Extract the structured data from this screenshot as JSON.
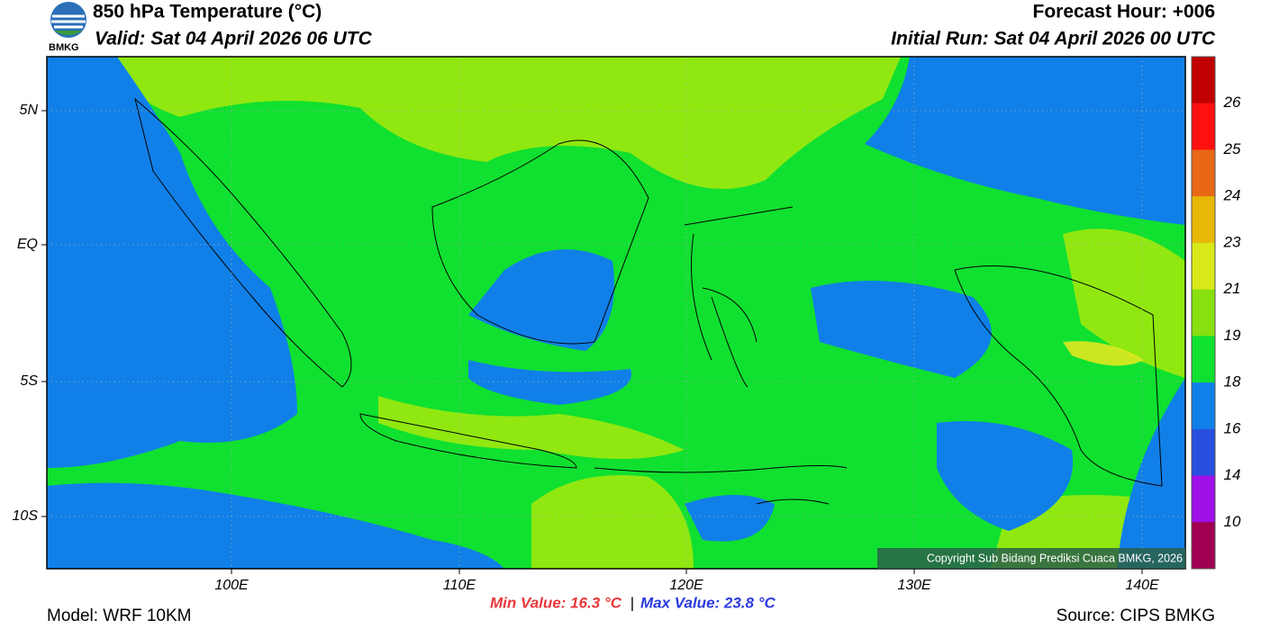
{
  "header": {
    "logo_text": "BMKG",
    "title": "850 hPa Temperature (°C)",
    "valid": "Valid: Sat 04 April 2026 06 UTC",
    "forecast_hour": "Forecast Hour: +006",
    "initial_run": "Initial Run: Sat 04 April 2026 00 UTC"
  },
  "map": {
    "lat_labels": [
      "5N",
      "EQ",
      "5S",
      "10S"
    ],
    "lon_labels": [
      "100E",
      "110E",
      "120E",
      "130E",
      "140E"
    ],
    "copyright": "Copyright Sub Bidang Prediksi Cuaca BMKG, 2026"
  },
  "colorbar": {
    "labels": [
      "26",
      "25",
      "24",
      "23",
      "21",
      "19",
      "18",
      "16",
      "14",
      "10"
    ],
    "colors": [
      "#c00000",
      "#ff1010",
      "#e86818",
      "#e8b808",
      "#d8e818",
      "#88e010",
      "#10e030",
      "#1080e8",
      "#2850e0",
      "#a010e8",
      "#a00050"
    ]
  },
  "footer": {
    "model": "Model: WRF 10KM",
    "min": "Min Value: 16.3 °C",
    "separator": "|",
    "max": "Max Value: 23.8 °C",
    "source": "Source: CIPS BMKG"
  }
}
